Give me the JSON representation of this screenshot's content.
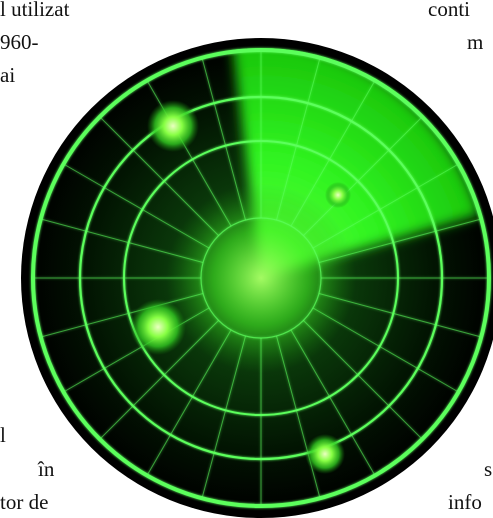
{
  "text_fragments": {
    "left_top": [
      "l utilizat",
      "960-",
      "ai"
    ],
    "left_bottom": [
      "l",
      "în",
      "tor de"
    ],
    "right_top": [
      "conti",
      "m"
    ],
    "right_bottom": [
      "s",
      "info"
    ]
  },
  "radar": {
    "icon": "radar-icon",
    "colors": {
      "background": "#000000",
      "grid": "#5cff5c",
      "glow": "#33ff33",
      "blip": "#ccff99"
    },
    "blip_count": 4
  }
}
